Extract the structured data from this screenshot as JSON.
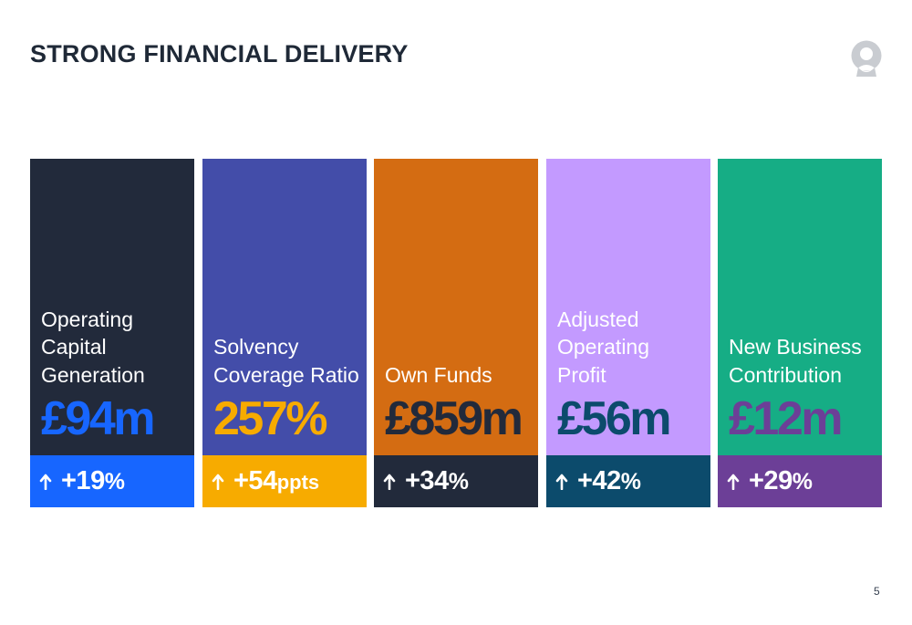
{
  "title": "STRONG FINANCIAL DELIVERY",
  "page_number": "5",
  "logo": "person-silhouette-icon",
  "cards": [
    {
      "label": "Operating\nCapital\nGeneration",
      "value": "£94m",
      "delta": "+19",
      "delta_unit": "%",
      "top_color": "#222a3b",
      "value_color": "#1766ff",
      "bottom_color": "#1766ff"
    },
    {
      "label": "Solvency\nCoverage Ratio",
      "value": "257%",
      "delta": "+54",
      "delta_unit": "ppts",
      "top_color": "#434da9",
      "value_color": "#f7ab00",
      "bottom_color": "#f7ab00"
    },
    {
      "label": "Own Funds",
      "value": "£859m",
      "delta": "+34",
      "delta_unit": "%",
      "top_color": "#d46c12",
      "value_color": "#222a3b",
      "bottom_color": "#222a3b"
    },
    {
      "label": "Adjusted\nOperating\nProfit",
      "value": "£56m",
      "delta": "+42",
      "delta_unit": "%",
      "top_color": "#c39aff",
      "value_color": "#0c4b6c",
      "bottom_color": "#0c4b6c"
    },
    {
      "label": "New Business\nContribution",
      "value": "£12m",
      "delta": "+29",
      "delta_unit": "%",
      "top_color": "#16ad85",
      "value_color": "#6c3f97",
      "bottom_color": "#6c3f97"
    }
  ]
}
